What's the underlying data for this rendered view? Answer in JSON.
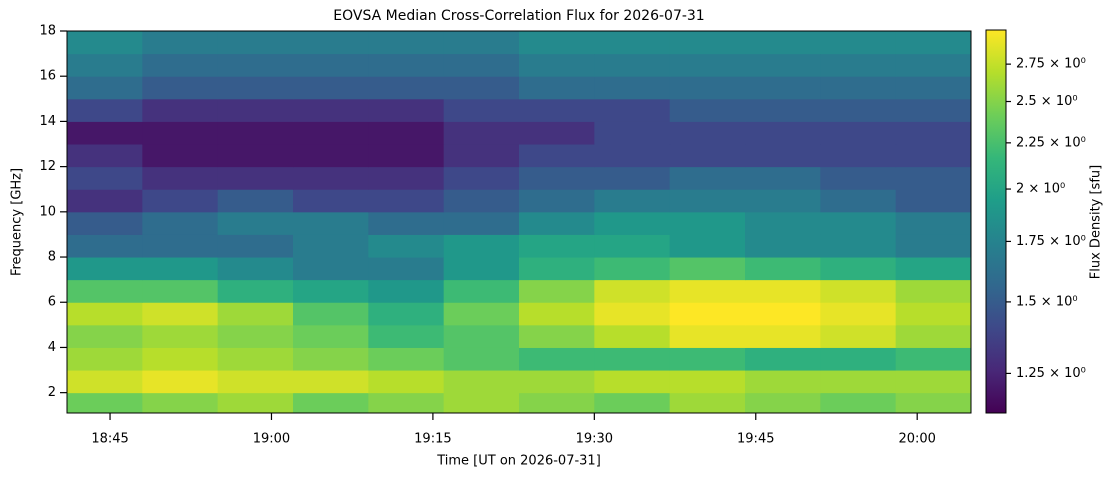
{
  "chart_data": {
    "type": "heatmap",
    "title": "EOVSA Median Cross-Correlation Flux for 2026-07-31",
    "xlabel": "Time [UT on 2026-07-31]",
    "ylabel": "Frequency [GHz]",
    "colorbar_label": "Flux Density [sfu]",
    "x": [
      "18:41",
      "18:48",
      "18:55",
      "19:02",
      "19:09",
      "19:16",
      "19:23",
      "19:30",
      "19:37",
      "19:44",
      "19:51",
      "19:58",
      "20:05"
    ],
    "y": [
      1.1,
      2,
      3,
      4,
      5,
      6,
      7,
      8,
      9,
      10,
      11,
      12,
      13,
      14,
      15,
      16,
      17,
      18
    ],
    "z": [
      [
        2.4,
        2.5,
        2.6,
        2.4,
        2.5,
        2.6,
        2.5,
        2.4,
        2.6,
        2.5,
        2.4,
        2.5
      ],
      [
        2.8,
        2.9,
        2.8,
        2.8,
        2.7,
        2.6,
        2.6,
        2.7,
        2.7,
        2.6,
        2.6,
        2.6
      ],
      [
        2.6,
        2.7,
        2.6,
        2.5,
        2.4,
        2.3,
        2.2,
        2.2,
        2.2,
        2.1,
        2.1,
        2.2
      ],
      [
        2.5,
        2.6,
        2.5,
        2.4,
        2.2,
        2.3,
        2.5,
        2.7,
        2.9,
        2.9,
        2.8,
        2.6
      ],
      [
        2.7,
        2.8,
        2.6,
        2.3,
        2.1,
        2.4,
        2.7,
        2.9,
        3.0,
        3.0,
        2.9,
        2.7
      ],
      [
        2.3,
        2.3,
        2.1,
        2.0,
        1.9,
        2.2,
        2.5,
        2.8,
        2.9,
        2.9,
        2.8,
        2.6
      ],
      [
        1.9,
        1.9,
        1.8,
        1.7,
        1.7,
        1.9,
        2.1,
        2.2,
        2.3,
        2.2,
        2.1,
        2.0
      ],
      [
        1.6,
        1.6,
        1.6,
        1.7,
        1.8,
        1.9,
        2.0,
        2.0,
        1.9,
        1.8,
        1.8,
        1.7
      ],
      [
        1.5,
        1.6,
        1.7,
        1.7,
        1.6,
        1.6,
        1.8,
        1.9,
        1.9,
        1.8,
        1.8,
        1.7
      ],
      [
        1.3,
        1.4,
        1.5,
        1.4,
        1.4,
        1.5,
        1.6,
        1.7,
        1.7,
        1.7,
        1.6,
        1.5
      ],
      [
        1.4,
        1.3,
        1.3,
        1.3,
        1.3,
        1.4,
        1.5,
        1.5,
        1.6,
        1.6,
        1.5,
        1.5
      ],
      [
        1.3,
        1.2,
        1.2,
        1.2,
        1.2,
        1.3,
        1.4,
        1.4,
        1.4,
        1.4,
        1.4,
        1.4
      ],
      [
        1.2,
        1.2,
        1.2,
        1.2,
        1.2,
        1.3,
        1.3,
        1.4,
        1.4,
        1.4,
        1.4,
        1.4
      ],
      [
        1.4,
        1.3,
        1.3,
        1.3,
        1.3,
        1.4,
        1.4,
        1.4,
        1.5,
        1.5,
        1.5,
        1.5
      ],
      [
        1.6,
        1.5,
        1.5,
        1.5,
        1.5,
        1.5,
        1.6,
        1.6,
        1.6,
        1.6,
        1.6,
        1.6
      ],
      [
        1.7,
        1.6,
        1.6,
        1.6,
        1.6,
        1.6,
        1.7,
        1.7,
        1.7,
        1.7,
        1.7,
        1.7
      ],
      [
        1.8,
        1.7,
        1.7,
        1.7,
        1.7,
        1.7,
        1.8,
        1.8,
        1.8,
        1.8,
        1.8,
        1.8
      ]
    ],
    "xlim": [
      "18:41",
      "20:05"
    ],
    "xticks": [
      "18:45",
      "19:00",
      "19:15",
      "19:30",
      "19:45",
      "20:00"
    ],
    "ylim": [
      1.1,
      18
    ],
    "yticks": [
      2,
      4,
      6,
      8,
      10,
      12,
      14,
      16,
      18
    ],
    "zlim": [
      1.13,
      3.0
    ],
    "zscale": "log",
    "zticks": [
      {
        "value": 1.25,
        "label": "1.25 × 10⁰"
      },
      {
        "value": 1.5,
        "label": "1.5 × 10⁰"
      },
      {
        "value": 1.75,
        "label": "1.75 × 10⁰"
      },
      {
        "value": 2,
        "label": "2 × 10⁰"
      },
      {
        "value": 2.25,
        "label": "2.25 × 10⁰"
      },
      {
        "value": 2.5,
        "label": "2.5 × 10⁰"
      },
      {
        "value": 2.75,
        "label": "2.75 × 10⁰"
      }
    ],
    "colormap": [
      "#440154",
      "#482878",
      "#3e4989",
      "#31688e",
      "#26828e",
      "#1f9e89",
      "#35b779",
      "#6ece58",
      "#b5de2b",
      "#fde725"
    ]
  }
}
